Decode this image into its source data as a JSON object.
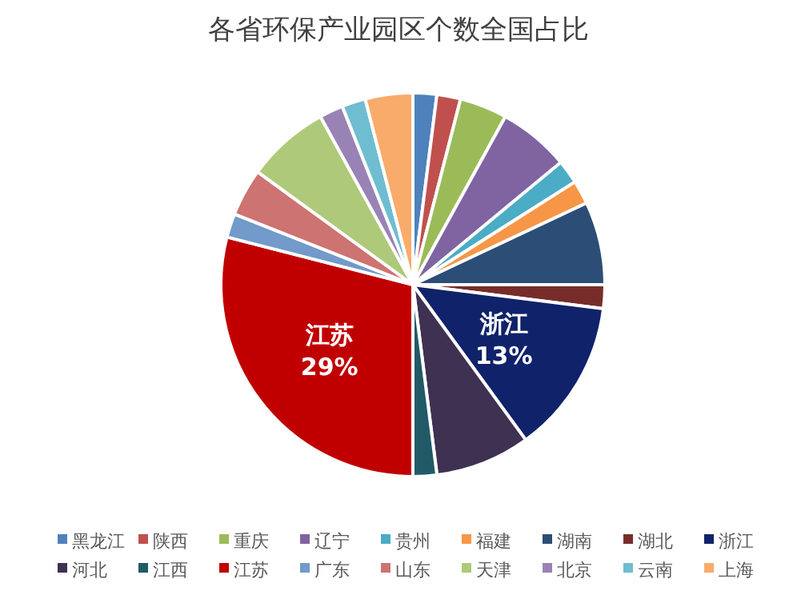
{
  "chart_data": {
    "type": "pie",
    "title": "各省环保产业园区个数全国占比",
    "categories": [
      "黑龙江",
      "陕西",
      "重庆",
      "辽宁",
      "贵州",
      "福建",
      "湖南",
      "湖北",
      "浙江",
      "河北",
      "江西",
      "江苏",
      "广东",
      "山东",
      "天津",
      "北京",
      "云南",
      "上海"
    ],
    "values": [
      2,
      2,
      4,
      6,
      2,
      2,
      7,
      2,
      13,
      8,
      2,
      29,
      2,
      4,
      7,
      2,
      2,
      4
    ],
    "value_labels": [
      null,
      null,
      null,
      null,
      null,
      null,
      null,
      null,
      "13%",
      null,
      null,
      "29%",
      null,
      null,
      null,
      null,
      null,
      null
    ],
    "colors": [
      "#4f81bd",
      "#c0504d",
      "#9bbb59",
      "#8064a2",
      "#4bacc6",
      "#f79646",
      "#2c4d75",
      "#772c2a",
      "#10226a",
      "#3f3151",
      "#215967",
      "#c00000",
      "#729aca",
      "#cd7371",
      "#afc97a",
      "#9983b5",
      "#6fbdd1",
      "#f9ab6b"
    ],
    "legend": "bottom"
  }
}
